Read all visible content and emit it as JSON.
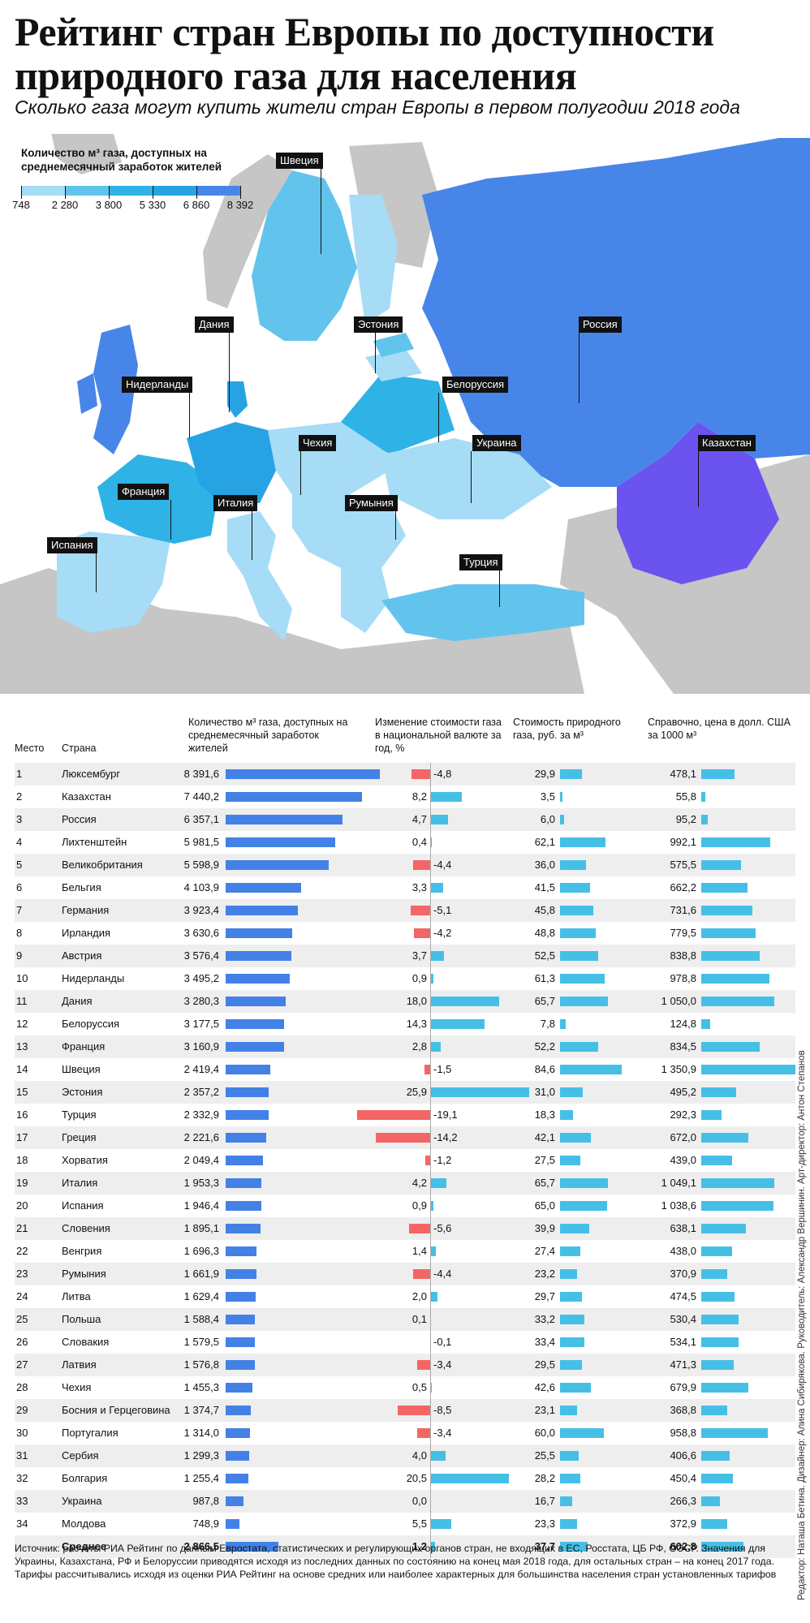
{
  "title": "Рейтинг стран Европы по доступности природного газа для населения",
  "subtitle": "Сколько газа могут купить жители стран Европы в первом полугодии 2018 года",
  "legend": {
    "title": "Количество м³ газа, доступных на среднемесячный заработок жителей",
    "ticks": [
      "748",
      "2 280",
      "3 800",
      "5 330",
      "6 860",
      "8 392"
    ],
    "colors": [
      "#a6dcf6",
      "#62c4ec",
      "#2fb3e6",
      "#27a3e3",
      "#4786e8",
      "#6b53f0"
    ]
  },
  "map_labels": [
    "Швеция",
    "Дания",
    "Эстония",
    "Россия",
    "Нидерланды",
    "Белоруссия",
    "Чехия",
    "Украина",
    "Казахстан",
    "Франция",
    "Италия",
    "Румыния",
    "Испания",
    "Турция"
  ],
  "table_headers": {
    "place": "Место",
    "country": "Страна",
    "amount": "Количество м³ газа, доступных на среднемесячный заработок жителей",
    "change": "Изменение стоимости газа в национальной валюте за год, %",
    "price_rub": "Стоимость природного газа, руб. за м³",
    "price_usd": "Справочно, цена в долл. США за 1000 м³"
  },
  "chart_data": {
    "type": "table",
    "columns": [
      "Место",
      "Страна",
      "Количество м³ газа, доступных на среднемесячный заработок жителей",
      "Изменение стоимости газа в национальной валюте за год, %",
      "Стоимость природного газа, руб. за м³",
      "Справочно, цена в долл. США за 1000 м³"
    ],
    "rows": [
      {
        "place": "1",
        "country": "Люксембург",
        "amount": 8391.6,
        "amount_label": "8 391,6",
        "change": -4.8,
        "change_label": "-4,8",
        "rub": 29.9,
        "rub_label": "29,9",
        "usd": 478.1,
        "usd_label": "478,1"
      },
      {
        "place": "2",
        "country": "Казахстан",
        "amount": 7440.2,
        "amount_label": "7 440,2",
        "change": 8.2,
        "change_label": "8,2",
        "rub": 3.5,
        "rub_label": "3,5",
        "usd": 55.8,
        "usd_label": "55,8"
      },
      {
        "place": "3",
        "country": "Россия",
        "amount": 6357.1,
        "amount_label": "6 357,1",
        "change": 4.7,
        "change_label": "4,7",
        "rub": 6.0,
        "rub_label": "6,0",
        "usd": 95.2,
        "usd_label": "95,2"
      },
      {
        "place": "4",
        "country": "Лихтенштейн",
        "amount": 5981.5,
        "amount_label": "5 981,5",
        "change": 0.4,
        "change_label": "0,4",
        "rub": 62.1,
        "rub_label": "62,1",
        "usd": 992.1,
        "usd_label": "992,1"
      },
      {
        "place": "5",
        "country": "Великобритания",
        "amount": 5598.9,
        "amount_label": "5 598,9",
        "change": -4.4,
        "change_label": "-4,4",
        "rub": 36.0,
        "rub_label": "36,0",
        "usd": 575.5,
        "usd_label": "575,5"
      },
      {
        "place": "6",
        "country": "Бельгия",
        "amount": 4103.9,
        "amount_label": "4 103,9",
        "change": 3.3,
        "change_label": "3,3",
        "rub": 41.5,
        "rub_label": "41,5",
        "usd": 662.2,
        "usd_label": "662,2"
      },
      {
        "place": "7",
        "country": "Германия",
        "amount": 3923.4,
        "amount_label": "3 923,4",
        "change": -5.1,
        "change_label": "-5,1",
        "rub": 45.8,
        "rub_label": "45,8",
        "usd": 731.6,
        "usd_label": "731,6"
      },
      {
        "place": "8",
        "country": "Ирландия",
        "amount": 3630.6,
        "amount_label": "3 630,6",
        "change": -4.2,
        "change_label": "-4,2",
        "rub": 48.8,
        "rub_label": "48,8",
        "usd": 779.5,
        "usd_label": "779,5"
      },
      {
        "place": "9",
        "country": "Австрия",
        "amount": 3576.4,
        "amount_label": "3 576,4",
        "change": 3.7,
        "change_label": "3,7",
        "rub": 52.5,
        "rub_label": "52,5",
        "usd": 838.8,
        "usd_label": "838,8"
      },
      {
        "place": "10",
        "country": "Нидерланды",
        "amount": 3495.2,
        "amount_label": "3 495,2",
        "change": 0.9,
        "change_label": "0,9",
        "rub": 61.3,
        "rub_label": "61,3",
        "usd": 978.8,
        "usd_label": "978,8"
      },
      {
        "place": "11",
        "country": "Дания",
        "amount": 3280.3,
        "amount_label": "3 280,3",
        "change": 18.0,
        "change_label": "18,0",
        "rub": 65.7,
        "rub_label": "65,7",
        "usd": 1050.0,
        "usd_label": "1 050,0"
      },
      {
        "place": "12",
        "country": "Белоруссия",
        "amount": 3177.5,
        "amount_label": "3 177,5",
        "change": 14.3,
        "change_label": "14,3",
        "rub": 7.8,
        "rub_label": "7,8",
        "usd": 124.8,
        "usd_label": "124,8"
      },
      {
        "place": "13",
        "country": "Франция",
        "amount": 3160.9,
        "amount_label": "3 160,9",
        "change": 2.8,
        "change_label": "2,8",
        "rub": 52.2,
        "rub_label": "52,2",
        "usd": 834.5,
        "usd_label": "834,5"
      },
      {
        "place": "14",
        "country": "Швеция",
        "amount": 2419.4,
        "amount_label": "2 419,4",
        "change": -1.5,
        "change_label": "-1,5",
        "rub": 84.6,
        "rub_label": "84,6",
        "usd": 1350.9,
        "usd_label": "1 350,9"
      },
      {
        "place": "15",
        "country": "Эстония",
        "amount": 2357.2,
        "amount_label": "2 357,2",
        "change": 25.9,
        "change_label": "25,9",
        "rub": 31.0,
        "rub_label": "31,0",
        "usd": 495.2,
        "usd_label": "495,2"
      },
      {
        "place": "16",
        "country": "Турция",
        "amount": 2332.9,
        "amount_label": "2 332,9",
        "change": -19.1,
        "change_label": "-19,1",
        "rub": 18.3,
        "rub_label": "18,3",
        "usd": 292.3,
        "usd_label": "292,3"
      },
      {
        "place": "17",
        "country": "Греция",
        "amount": 2221.6,
        "amount_label": "2 221,6",
        "change": -14.2,
        "change_label": "-14,2",
        "rub": 42.1,
        "rub_label": "42,1",
        "usd": 672.0,
        "usd_label": "672,0"
      },
      {
        "place": "18",
        "country": "Хорватия",
        "amount": 2049.4,
        "amount_label": "2 049,4",
        "change": -1.2,
        "change_label": "-1,2",
        "rub": 27.5,
        "rub_label": "27,5",
        "usd": 439.0,
        "usd_label": "439,0"
      },
      {
        "place": "19",
        "country": "Италия",
        "amount": 1953.3,
        "amount_label": "1 953,3",
        "change": 4.2,
        "change_label": "4,2",
        "rub": 65.7,
        "rub_label": "65,7",
        "usd": 1049.1,
        "usd_label": "1 049,1"
      },
      {
        "place": "20",
        "country": "Испания",
        "amount": 1946.4,
        "amount_label": "1 946,4",
        "change": 0.9,
        "change_label": "0,9",
        "rub": 65.0,
        "rub_label": "65,0",
        "usd": 1038.6,
        "usd_label": "1 038,6"
      },
      {
        "place": "21",
        "country": "Словения",
        "amount": 1895.1,
        "amount_label": "1 895,1",
        "change": -5.6,
        "change_label": "-5,6",
        "rub": 39.9,
        "rub_label": "39,9",
        "usd": 638.1,
        "usd_label": "638,1"
      },
      {
        "place": "22",
        "country": "Венгрия",
        "amount": 1696.3,
        "amount_label": "1 696,3",
        "change": 1.4,
        "change_label": "1,4",
        "rub": 27.4,
        "rub_label": "27,4",
        "usd": 438.0,
        "usd_label": "438,0"
      },
      {
        "place": "23",
        "country": "Румыния",
        "amount": 1661.9,
        "amount_label": "1 661,9",
        "change": -4.4,
        "change_label": "-4,4",
        "rub": 23.2,
        "rub_label": "23,2",
        "usd": 370.9,
        "usd_label": "370,9"
      },
      {
        "place": "24",
        "country": "Литва",
        "amount": 1629.4,
        "amount_label": "1 629,4",
        "change": 2.0,
        "change_label": "2,0",
        "rub": 29.7,
        "rub_label": "29,7",
        "usd": 474.5,
        "usd_label": "474,5"
      },
      {
        "place": "25",
        "country": "Польша",
        "amount": 1588.4,
        "amount_label": "1 588,4",
        "change": 0.1,
        "change_label": "0,1",
        "rub": 33.2,
        "rub_label": "33,2",
        "usd": 530.4,
        "usd_label": "530,4"
      },
      {
        "place": "26",
        "country": "Словакия",
        "amount": 1579.5,
        "amount_label": "1 579,5",
        "change": -0.1,
        "change_label": "-0,1",
        "rub": 33.4,
        "rub_label": "33,4",
        "usd": 534.1,
        "usd_label": "534,1"
      },
      {
        "place": "27",
        "country": "Латвия",
        "amount": 1576.8,
        "amount_label": "1 576,8",
        "change": -3.4,
        "change_label": "-3,4",
        "rub": 29.5,
        "rub_label": "29,5",
        "usd": 471.3,
        "usd_label": "471,3"
      },
      {
        "place": "28",
        "country": "Чехия",
        "amount": 1455.3,
        "amount_label": "1 455,3",
        "change": 0.5,
        "change_label": "0,5",
        "rub": 42.6,
        "rub_label": "42,6",
        "usd": 679.9,
        "usd_label": "679,9"
      },
      {
        "place": "29",
        "country": "Босния и Герцеговина",
        "amount": 1374.7,
        "amount_label": "1 374,7",
        "change": -8.5,
        "change_label": "-8,5",
        "rub": 23.1,
        "rub_label": "23,1",
        "usd": 368.8,
        "usd_label": "368,8"
      },
      {
        "place": "30",
        "country": "Португалия",
        "amount": 1314.0,
        "amount_label": "1 314,0",
        "change": -3.4,
        "change_label": "-3,4",
        "rub": 60.0,
        "rub_label": "60,0",
        "usd": 958.8,
        "usd_label": "958,8"
      },
      {
        "place": "31",
        "country": "Сербия",
        "amount": 1299.3,
        "amount_label": "1 299,3",
        "change": 4.0,
        "change_label": "4,0",
        "rub": 25.5,
        "rub_label": "25,5",
        "usd": 406.6,
        "usd_label": "406,6"
      },
      {
        "place": "32",
        "country": "Болгария",
        "amount": 1255.4,
        "amount_label": "1 255,4",
        "change": 20.5,
        "change_label": "20,5",
        "rub": 28.2,
        "rub_label": "28,2",
        "usd": 450.4,
        "usd_label": "450,4"
      },
      {
        "place": "33",
        "country": "Украина",
        "amount": 987.8,
        "amount_label": "987,8",
        "change": 0.0,
        "change_label": "0,0",
        "rub": 16.7,
        "rub_label": "16,7",
        "usd": 266.3,
        "usd_label": "266,3"
      },
      {
        "place": "34",
        "country": "Молдова",
        "amount": 748.9,
        "amount_label": "748,9",
        "change": 5.5,
        "change_label": "5,5",
        "rub": 23.3,
        "rub_label": "23,3",
        "usd": 372.9,
        "usd_label": "372,9"
      }
    ],
    "average": {
      "place": "",
      "country": "Среднее",
      "amount": 2866.5,
      "amount_label": "2 866,5",
      "change": 1.2,
      "change_label": "1,2",
      "rub": 37.7,
      "rub_label": "37,7",
      "usd": 602.8,
      "usd_label": "602,8"
    },
    "colors": {
      "amount_bar": "#4381e6",
      "change_pos": "#46bfe6",
      "change_neg": "#f46565",
      "price_bar": "#46bfe6"
    }
  },
  "source": "Источник: расчеты РИА Рейтинг по данным Евростата, статистических и регулирующих органов стран, не входящих в ЕС, Росстата, ЦБ РФ, ОЭСР. Значения для Украины, Казахстана, РФ и Белоруссии приводятся исходя из последних данных по состоянию на конец мая 2018 года, для остальных стран – на конец 2017 года. Тарифы рассчитывались исходя из оценки РИА Рейтинг на основе средних или наиболее характерных для большинства населения стран установленных тарифов",
  "credits": "Редактор: Наташа Бетина. Дизайнер: Алина Сибирякова. Руководитель: Александр Вершинин. Арт-директор: Антон Степанов"
}
